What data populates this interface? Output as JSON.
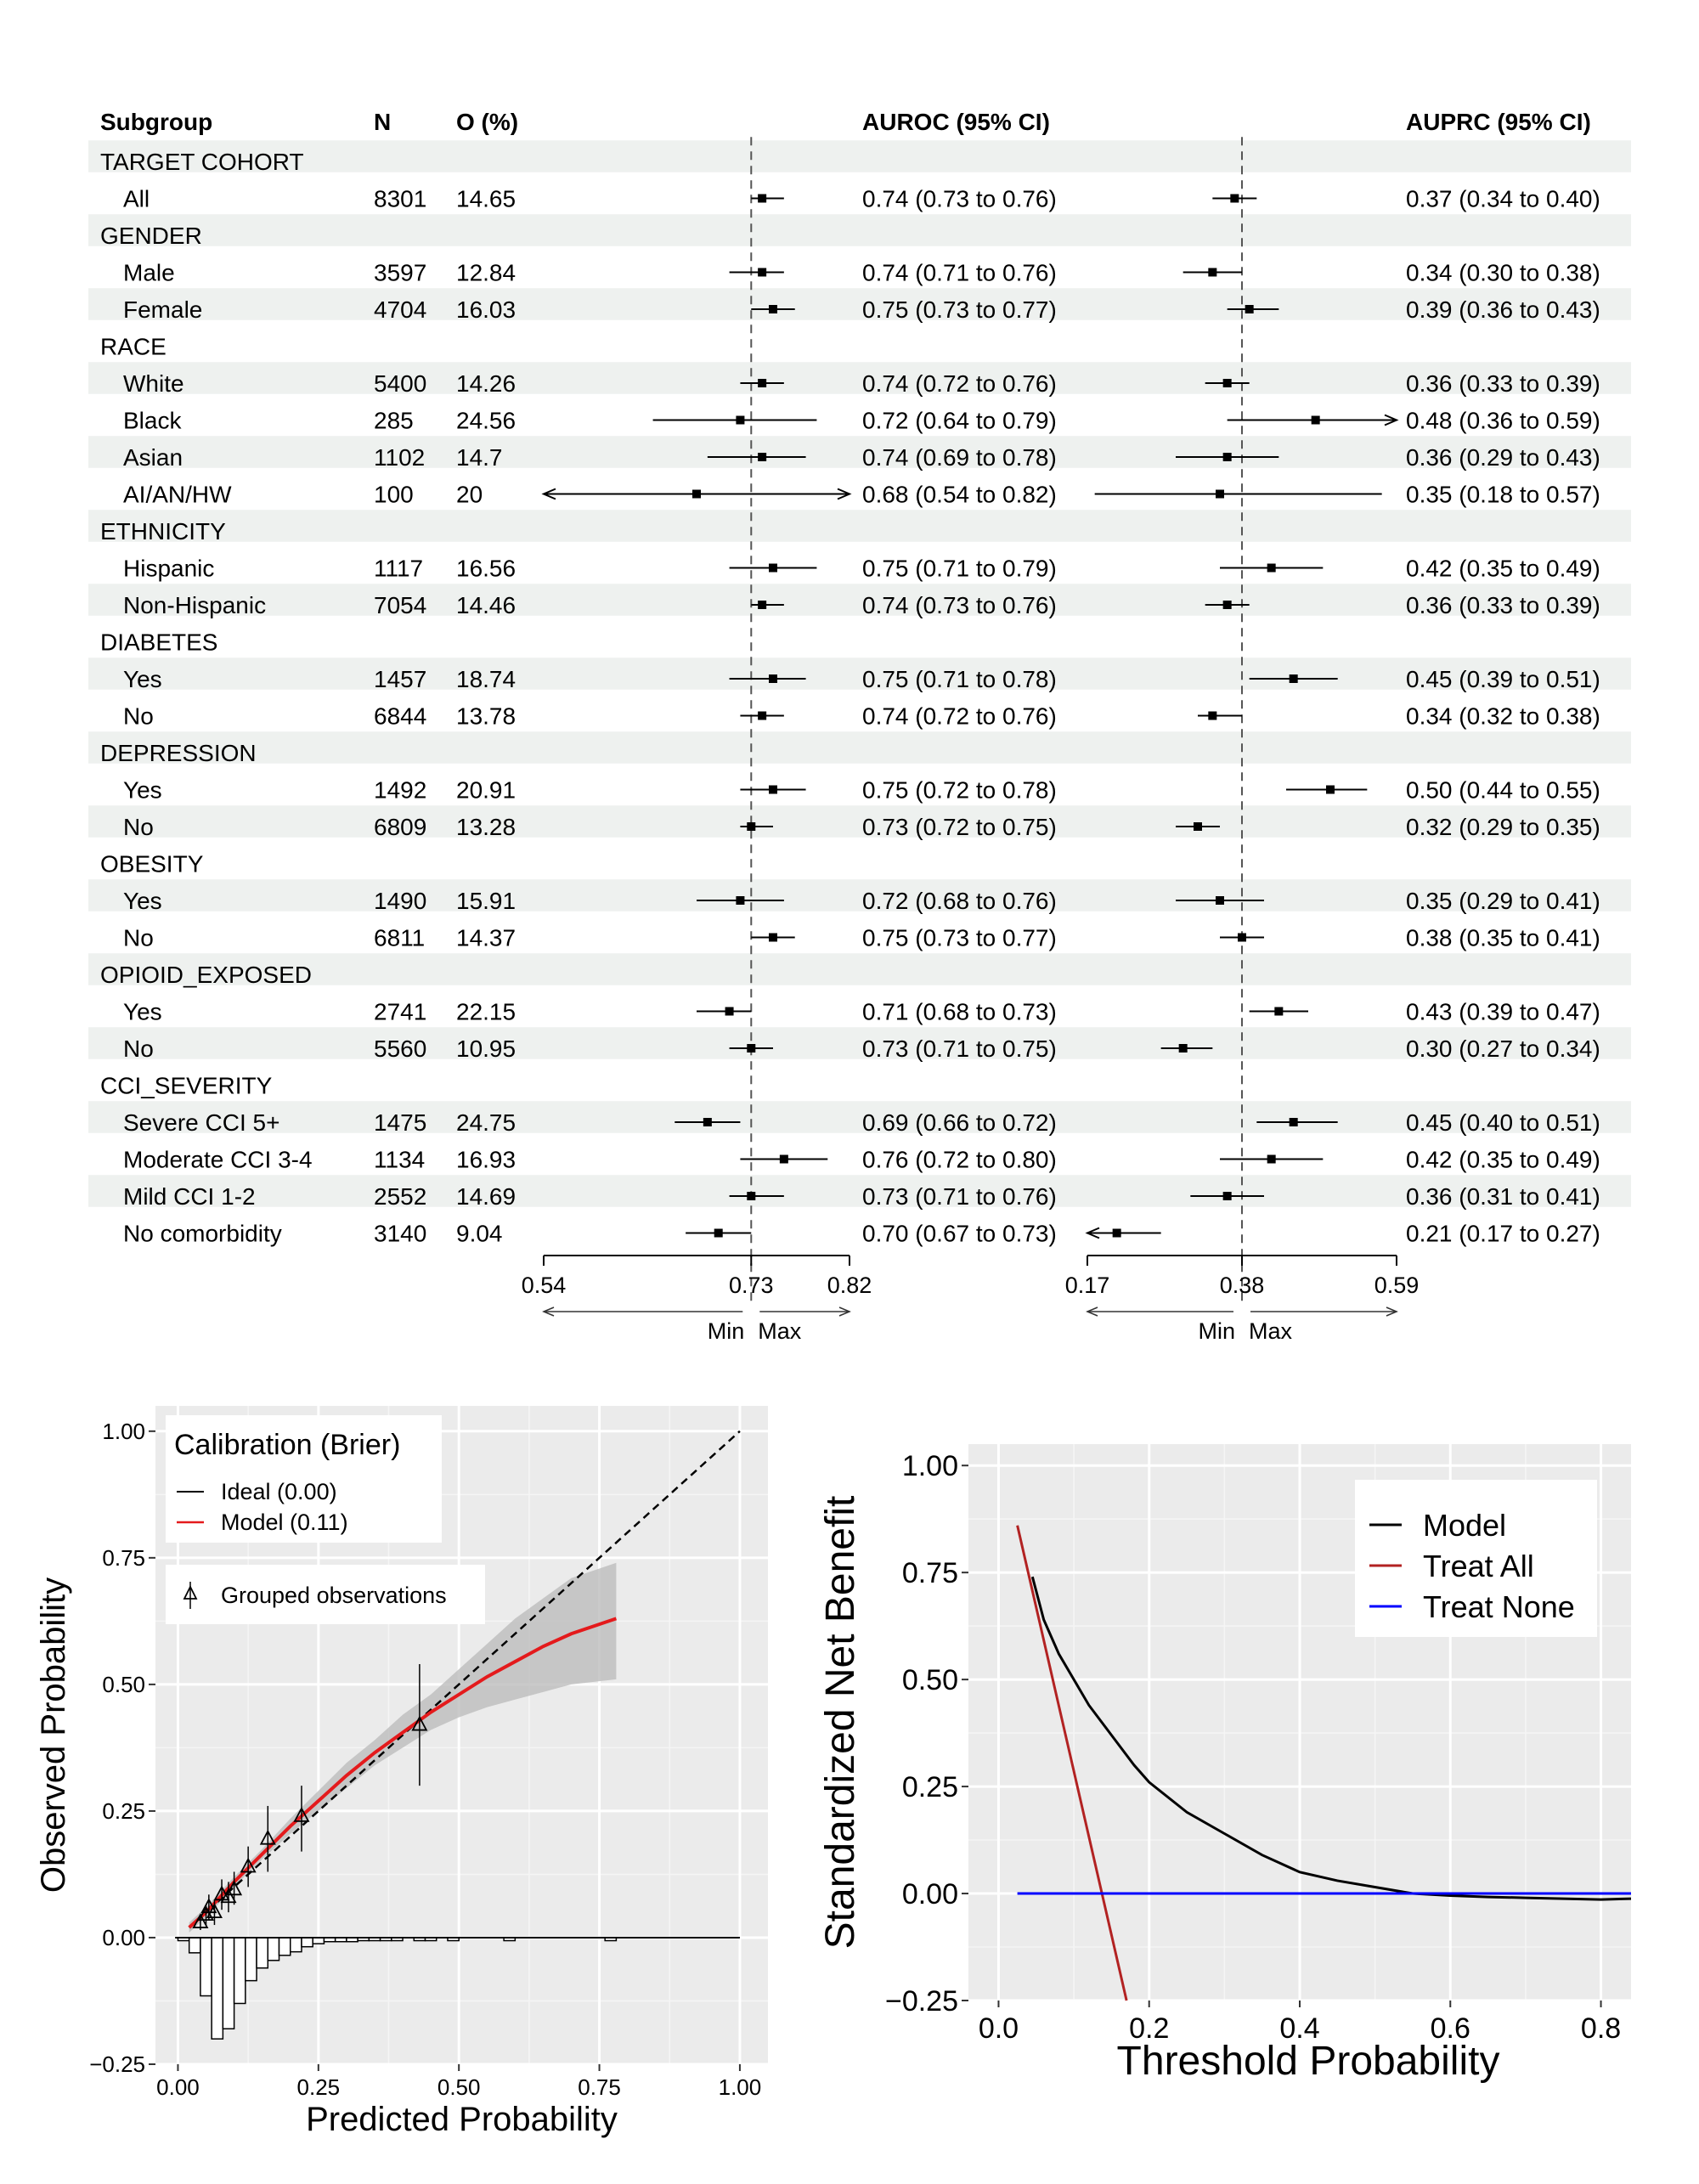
{
  "chart_data": [
    {
      "type": "forest",
      "columns": {
        "subgroup": "Subgroup",
        "n": "N",
        "o": "O (%)",
        "auroc": "AUROC (95% CI)",
        "auprc": "AUPRC (95% CI)"
      },
      "rows": [
        {
          "header": "TARGET COHORT"
        },
        {
          "label": "All",
          "n": "8301",
          "o": "14.65",
          "auroc": [
            0.74,
            0.73,
            0.76
          ],
          "auroc_text": "0.74 (0.73 to 0.76)",
          "auprc": [
            0.37,
            0.34,
            0.4
          ],
          "auprc_text": "0.37 (0.34 to 0.40)"
        },
        {
          "header": "GENDER"
        },
        {
          "label": "Male",
          "n": "3597",
          "o": "12.84",
          "auroc": [
            0.74,
            0.71,
            0.76
          ],
          "auroc_text": "0.74 (0.71 to 0.76)",
          "auprc": [
            0.34,
            0.3,
            0.38
          ],
          "auprc_text": "0.34 (0.30 to 0.38)"
        },
        {
          "label": "Female",
          "n": "4704",
          "o": "16.03",
          "auroc": [
            0.75,
            0.73,
            0.77
          ],
          "auroc_text": "0.75 (0.73 to 0.77)",
          "auprc": [
            0.39,
            0.36,
            0.43
          ],
          "auprc_text": "0.39 (0.36 to 0.43)"
        },
        {
          "header": "RACE"
        },
        {
          "label": "White",
          "n": "5400",
          "o": "14.26",
          "auroc": [
            0.74,
            0.72,
            0.76
          ],
          "auroc_text": "0.74 (0.72 to 0.76)",
          "auprc": [
            0.36,
            0.33,
            0.39
          ],
          "auprc_text": "0.36 (0.33 to 0.39)"
        },
        {
          "label": "Black",
          "n": "285",
          "o": "24.56",
          "auroc": [
            0.72,
            0.64,
            0.79
          ],
          "auroc_text": "0.72 (0.64 to 0.79)",
          "auprc": [
            0.48,
            0.36,
            0.59
          ],
          "auprc_text": "0.48 (0.36 to 0.59)"
        },
        {
          "label": "Asian",
          "n": "1102",
          "o": "14.7",
          "auroc": [
            0.74,
            0.69,
            0.78
          ],
          "auroc_text": "0.74 (0.69 to 0.78)",
          "auprc": [
            0.36,
            0.29,
            0.43
          ],
          "auprc_text": "0.36 (0.29 to 0.43)"
        },
        {
          "label": "AI/AN/HW",
          "n": "100",
          "o": "20",
          "auroc": [
            0.68,
            0.54,
            0.82
          ],
          "auroc_text": "0.68 (0.54 to 0.82)",
          "auprc": [
            0.35,
            0.18,
            0.57
          ],
          "auprc_text": "0.35 (0.18 to 0.57)"
        },
        {
          "header": "ETHNICITY"
        },
        {
          "label": "Hispanic",
          "n": "1117",
          "o": "16.56",
          "auroc": [
            0.75,
            0.71,
            0.79
          ],
          "auroc_text": "0.75 (0.71 to 0.79)",
          "auprc": [
            0.42,
            0.35,
            0.49
          ],
          "auprc_text": "0.42 (0.35 to 0.49)"
        },
        {
          "label": "Non-Hispanic",
          "n": "7054",
          "o": "14.46",
          "auroc": [
            0.74,
            0.73,
            0.76
          ],
          "auroc_text": "0.74 (0.73 to 0.76)",
          "auprc": [
            0.36,
            0.33,
            0.39
          ],
          "auprc_text": "0.36 (0.33 to 0.39)"
        },
        {
          "header": "DIABETES"
        },
        {
          "label": "Yes",
          "n": "1457",
          "o": "18.74",
          "auroc": [
            0.75,
            0.71,
            0.78
          ],
          "auroc_text": "0.75 (0.71 to 0.78)",
          "auprc": [
            0.45,
            0.39,
            0.51
          ],
          "auprc_text": "0.45 (0.39 to 0.51)"
        },
        {
          "label": "No",
          "n": "6844",
          "o": "13.78",
          "auroc": [
            0.74,
            0.72,
            0.76
          ],
          "auroc_text": "0.74 (0.72 to 0.76)",
          "auprc": [
            0.34,
            0.32,
            0.38
          ],
          "auprc_text": "0.34 (0.32 to 0.38)"
        },
        {
          "header": "DEPRESSION"
        },
        {
          "label": "Yes",
          "n": "1492",
          "o": "20.91",
          "auroc": [
            0.75,
            0.72,
            0.78
          ],
          "auroc_text": "0.75 (0.72 to 0.78)",
          "auprc": [
            0.5,
            0.44,
            0.55
          ],
          "auprc_text": "0.50 (0.44 to 0.55)"
        },
        {
          "label": "No",
          "n": "6809",
          "o": "13.28",
          "auroc": [
            0.73,
            0.72,
            0.75
          ],
          "auroc_text": "0.73 (0.72 to 0.75)",
          "auprc": [
            0.32,
            0.29,
            0.35
          ],
          "auprc_text": "0.32 (0.29 to 0.35)"
        },
        {
          "header": "OBESITY"
        },
        {
          "label": "Yes",
          "n": "1490",
          "o": "15.91",
          "auroc": [
            0.72,
            0.68,
            0.76
          ],
          "auroc_text": "0.72 (0.68 to 0.76)",
          "auprc": [
            0.35,
            0.29,
            0.41
          ],
          "auprc_text": "0.35 (0.29 to 0.41)"
        },
        {
          "label": "No",
          "n": "6811",
          "o": "14.37",
          "auroc": [
            0.75,
            0.73,
            0.77
          ],
          "auroc_text": "0.75 (0.73 to 0.77)",
          "auprc": [
            0.38,
            0.35,
            0.41
          ],
          "auprc_text": "0.38 (0.35 to 0.41)"
        },
        {
          "header": "OPIOID_EXPOSED"
        },
        {
          "label": "Yes",
          "n": "2741",
          "o": "22.15",
          "auroc": [
            0.71,
            0.68,
            0.73
          ],
          "auroc_text": "0.71 (0.68 to 0.73)",
          "auprc": [
            0.43,
            0.39,
            0.47
          ],
          "auprc_text": "0.43 (0.39 to 0.47)"
        },
        {
          "label": "No",
          "n": "5560",
          "o": "10.95",
          "auroc": [
            0.73,
            0.71,
            0.75
          ],
          "auroc_text": "0.73 (0.71 to 0.75)",
          "auprc": [
            0.3,
            0.27,
            0.34
          ],
          "auprc_text": "0.30 (0.27 to 0.34)"
        },
        {
          "header": "CCI_SEVERITY"
        },
        {
          "label": "Severe CCI 5+",
          "n": "1475",
          "o": "24.75",
          "auroc": [
            0.69,
            0.66,
            0.72
          ],
          "auroc_text": "0.69 (0.66 to 0.72)",
          "auprc": [
            0.45,
            0.4,
            0.51
          ],
          "auprc_text": "0.45 (0.40 to 0.51)"
        },
        {
          "label": "Moderate CCI 3-4",
          "n": "1134",
          "o": "16.93",
          "auroc": [
            0.76,
            0.72,
            0.8
          ],
          "auroc_text": "0.76 (0.72 to 0.80)",
          "auprc": [
            0.42,
            0.35,
            0.49
          ],
          "auprc_text": "0.42 (0.35 to 0.49)"
        },
        {
          "label": "Mild CCI 1-2",
          "n": "2552",
          "o": "14.69",
          "auroc": [
            0.73,
            0.71,
            0.76
          ],
          "auroc_text": "0.73 (0.71 to 0.76)",
          "auprc": [
            0.36,
            0.31,
            0.41
          ],
          "auprc_text": "0.36 (0.31 to 0.41)"
        },
        {
          "label": "No comorbidity",
          "n": "3140",
          "o": "9.04",
          "auroc": [
            0.7,
            0.67,
            0.73
          ],
          "auroc_text": "0.70 (0.67 to 0.73)",
          "auprc": [
            0.21,
            0.17,
            0.27
          ],
          "auprc_text": "0.21 (0.17 to 0.27)"
        }
      ],
      "auroc_axis": {
        "ref": 0.73,
        "ticks": [
          "0.54",
          "0.73",
          "0.82"
        ],
        "min_label": "Min",
        "max_label": "Max"
      },
      "auprc_axis": {
        "ref": 0.38,
        "ticks": [
          "0.17",
          "0.38",
          "0.59"
        ],
        "min_label": "Min",
        "max_label": "Max"
      }
    },
    {
      "type": "line",
      "xlabel": "Predicted Probability",
      "ylabel": "Observed Probability",
      "xlim": [
        -0.04,
        1.05
      ],
      "ylim": [
        -0.25,
        1.05
      ],
      "xticks": [
        "0.00",
        "0.25",
        "0.50",
        "0.75",
        "1.00"
      ],
      "yticks": [
        "−0.25",
        "0.00",
        "0.25",
        "0.50",
        "0.75",
        "1.00"
      ],
      "legend": {
        "title": "Calibration (Brier)",
        "entries": [
          "Ideal (0.00)",
          "Model (0.11)"
        ],
        "obs_entry": "Grouped observations"
      },
      "ideal_color": "#000000",
      "model_color": "#e41a1c",
      "model_x": [
        0.02,
        0.05,
        0.1,
        0.15,
        0.2,
        0.25,
        0.3,
        0.35,
        0.4,
        0.45,
        0.5,
        0.55,
        0.6,
        0.65,
        0.7,
        0.78
      ],
      "model_y": [
        0.02,
        0.05,
        0.11,
        0.165,
        0.22,
        0.27,
        0.32,
        0.365,
        0.405,
        0.445,
        0.48,
        0.515,
        0.545,
        0.575,
        0.6,
        0.63
      ],
      "band_upper": [
        0.03,
        0.06,
        0.12,
        0.175,
        0.235,
        0.29,
        0.345,
        0.39,
        0.44,
        0.48,
        0.53,
        0.58,
        0.63,
        0.67,
        0.71,
        0.74
      ],
      "band_lower": [
        0.01,
        0.04,
        0.1,
        0.155,
        0.205,
        0.25,
        0.295,
        0.34,
        0.375,
        0.41,
        0.435,
        0.455,
        0.47,
        0.485,
        0.5,
        0.51
      ],
      "grouped_obs": [
        {
          "x": 0.04,
          "y": 0.03,
          "lo": 0.015,
          "hi": 0.045
        },
        {
          "x": 0.05,
          "y": 0.045,
          "lo": 0.025,
          "hi": 0.065
        },
        {
          "x": 0.055,
          "y": 0.06,
          "lo": 0.035,
          "hi": 0.085
        },
        {
          "x": 0.065,
          "y": 0.05,
          "lo": 0.025,
          "hi": 0.075
        },
        {
          "x": 0.078,
          "y": 0.085,
          "lo": 0.055,
          "hi": 0.115
        },
        {
          "x": 0.09,
          "y": 0.08,
          "lo": 0.05,
          "hi": 0.11
        },
        {
          "x": 0.1,
          "y": 0.095,
          "lo": 0.065,
          "hi": 0.13
        },
        {
          "x": 0.125,
          "y": 0.14,
          "lo": 0.1,
          "hi": 0.18
        },
        {
          "x": 0.16,
          "y": 0.195,
          "lo": 0.13,
          "hi": 0.26
        },
        {
          "x": 0.22,
          "y": 0.24,
          "lo": 0.17,
          "hi": 0.3
        },
        {
          "x": 0.43,
          "y": 0.42,
          "lo": 0.3,
          "hi": 0.54
        }
      ],
      "histogram": {
        "bin_width": 0.02,
        "starts": [
          0.0,
          0.02,
          0.04,
          0.06,
          0.08,
          0.1,
          0.12,
          0.14,
          0.16,
          0.18,
          0.2,
          0.22,
          0.24,
          0.26,
          0.28,
          0.3,
          0.32,
          0.34,
          0.36,
          0.38,
          0.4,
          0.42,
          0.44,
          0.46,
          0.48,
          0.58,
          0.76
        ],
        "depths": [
          0.006,
          0.03,
          0.115,
          0.2,
          0.18,
          0.13,
          0.085,
          0.06,
          0.045,
          0.035,
          0.028,
          0.018,
          0.012,
          0.008,
          0.008,
          0.008,
          0.006,
          0.006,
          0.006,
          0.006,
          0.0,
          0.006,
          0.006,
          0.0,
          0.006,
          0.006,
          0.006
        ]
      }
    },
    {
      "type": "line",
      "xlabel": "Threshold Probability",
      "ylabel": "Standardized Net Benefit",
      "xlim": [
        -0.04,
        0.84
      ],
      "ylim": [
        -0.25,
        1.05
      ],
      "xticks": [
        "0.0",
        "0.2",
        "0.4",
        "0.6",
        "0.8"
      ],
      "yticks": [
        "−0.25",
        "0.00",
        "0.25",
        "0.50",
        "0.75",
        "1.00"
      ],
      "series": [
        {
          "name": "Model",
          "color": "#000000",
          "x": [
            0.045,
            0.06,
            0.08,
            0.1,
            0.12,
            0.15,
            0.18,
            0.2,
            0.25,
            0.3,
            0.35,
            0.4,
            0.45,
            0.5,
            0.55,
            0.6,
            0.65,
            0.7,
            0.75,
            0.8,
            0.84
          ],
          "y": [
            0.74,
            0.64,
            0.56,
            0.5,
            0.44,
            0.37,
            0.3,
            0.26,
            0.19,
            0.14,
            0.09,
            0.05,
            0.03,
            0.015,
            0.0,
            -0.005,
            -0.008,
            -0.01,
            -0.012,
            -0.014,
            -0.012
          ]
        },
        {
          "name": "Treat All",
          "color": "#b22222",
          "x": [
            0.025,
            0.17
          ],
          "y": [
            0.86,
            -0.25
          ]
        },
        {
          "name": "Treat None",
          "color": "#0000ff",
          "x": [
            0.025,
            0.84
          ],
          "y": [
            0.0,
            0.0
          ]
        }
      ]
    }
  ]
}
